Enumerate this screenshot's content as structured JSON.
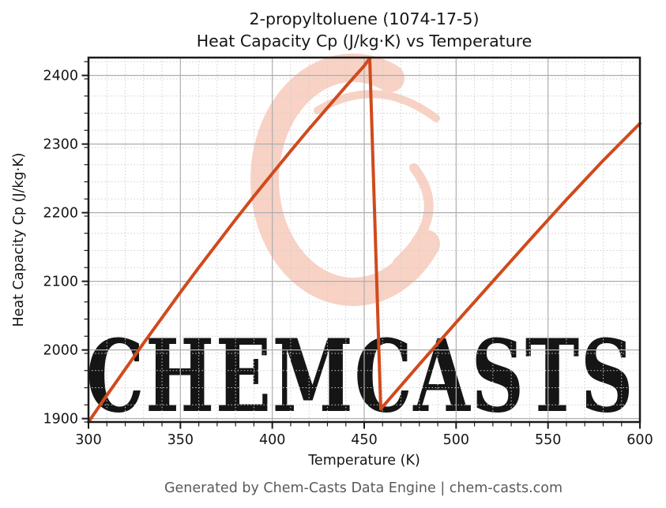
{
  "title": {
    "line1": "2-propyltoluene (1074-17-5)",
    "line2": "Heat Capacity Cp (J/kg·K) vs Temperature"
  },
  "footer": "Generated by Chem-Casts Data Engine | chem-casts.com",
  "watermark": {
    "text": "CHEMCASTS",
    "logo": "brush-ring-logo"
  },
  "colors": {
    "line": "#d04a1c",
    "watermark": "#f8d2c5",
    "watermark_text": "#f8cdbf",
    "grid_major": "#aeaeae",
    "grid_minor": "#cfcfcf",
    "spine": "#1a1a1a",
    "footer_text": "#5a5a5a"
  },
  "chart_data": {
    "type": "line",
    "title": "2-propyltoluene (1074-17-5) — Heat Capacity Cp (J/kg·K) vs Temperature",
    "xlabel": "Temperature (K)",
    "ylabel": "Heat Capacity Cp (J/kg·K)",
    "xlim": [
      300,
      600
    ],
    "ylim": [
      1895,
      2426
    ],
    "x_major_ticks": [
      300,
      350,
      400,
      450,
      500,
      550,
      600
    ],
    "x_minor_step": 10,
    "y_major_ticks": [
      1900,
      2000,
      2100,
      2200,
      2300,
      2400
    ],
    "y_minor_step": 25,
    "grid": "major solid, minor dotted",
    "legend": "none",
    "series": [
      {
        "name": "Cp (J/kg·K)",
        "points": [
          [
            300,
            1895
          ],
          [
            310,
            1934
          ],
          [
            320,
            1972
          ],
          [
            330,
            2010
          ],
          [
            340,
            2047
          ],
          [
            350,
            2084
          ],
          [
            360,
            2120
          ],
          [
            370,
            2155
          ],
          [
            380,
            2190
          ],
          [
            390,
            2224
          ],
          [
            400,
            2257
          ],
          [
            410,
            2290
          ],
          [
            420,
            2322
          ],
          [
            430,
            2353
          ],
          [
            440,
            2384
          ],
          [
            450,
            2414
          ],
          [
            453,
            2425
          ],
          [
            459,
            1914
          ],
          [
            470,
            1948
          ],
          [
            480,
            1979
          ],
          [
            500,
            2040
          ],
          [
            520,
            2100
          ],
          [
            540,
            2160
          ],
          [
            560,
            2219
          ],
          [
            580,
            2276
          ],
          [
            600,
            2330
          ]
        ]
      }
    ],
    "annotations": {
      "peak": {
        "T": 453,
        "Cp": 2425
      },
      "trough": {
        "T": 459,
        "Cp": 1914
      }
    }
  }
}
